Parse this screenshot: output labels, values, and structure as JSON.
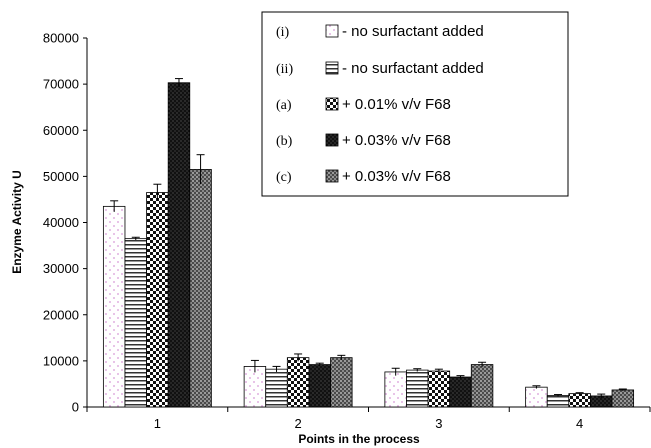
{
  "chart_data": {
    "type": "bar",
    "xlabel": "Points in the process",
    "ylabel": "Enzyme Activity U",
    "ylim": [
      0,
      80000
    ],
    "ytick_step": 10000,
    "grid": false,
    "legend_position": "top-right",
    "categories": [
      "1",
      "2",
      "3",
      "4"
    ],
    "series": [
      {
        "name": "no surfactant added",
        "marker": "(i)",
        "prefix": "- ",
        "pattern": "dots",
        "values": [
          43500,
          8800,
          7600,
          4300
        ],
        "errors": [
          1200,
          1300,
          800,
          300
        ]
      },
      {
        "name": "no surfactant added",
        "marker": "(ii)",
        "prefix": "- ",
        "pattern": "hlines",
        "values": [
          36500,
          8200,
          8000,
          2500
        ],
        "errors": [
          300,
          600,
          300,
          200
        ]
      },
      {
        "name": "+ 0.01% v/v F68",
        "marker": "(a)",
        "prefix": "",
        "pattern": "checker",
        "values": [
          46500,
          10700,
          7800,
          2900
        ],
        "errors": [
          1800,
          800,
          400,
          200
        ]
      },
      {
        "name": "+ 0.03% v/v F68",
        "marker": "(b)",
        "prefix": " ",
        "pattern": "darkdots",
        "values": [
          70300,
          9200,
          6500,
          2400
        ],
        "errors": [
          900,
          300,
          300,
          400
        ]
      },
      {
        "name": "+ 0.03% v/v F68",
        "marker": "(c)",
        "prefix": "",
        "pattern": "grid",
        "values": [
          51500,
          10700,
          9200,
          3700
        ],
        "errors": [
          3200,
          500,
          500,
          200
        ]
      }
    ]
  }
}
